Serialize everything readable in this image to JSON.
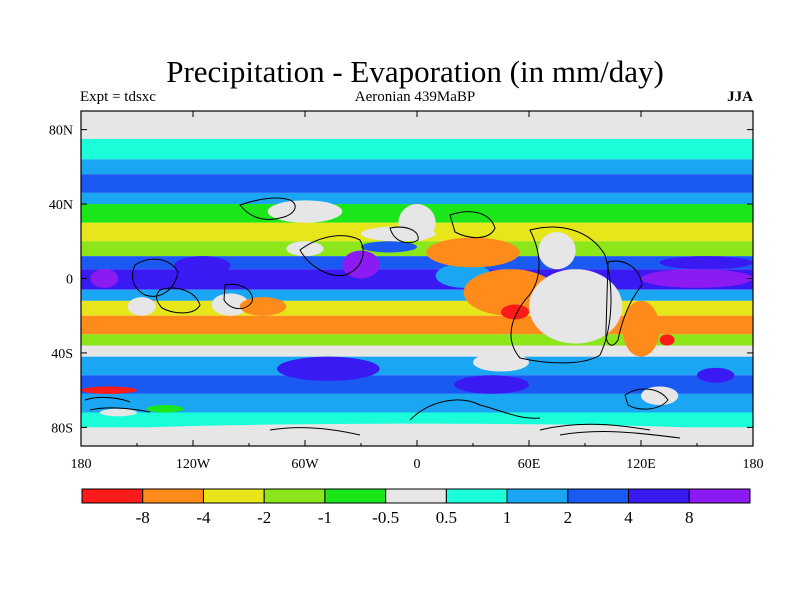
{
  "header": {
    "title": "Precipitation - Evaporation (in mm/day)",
    "left_label": "Expt = tdsxc",
    "center_label": "Aeronian 439MaBP",
    "right_label": "JJA"
  },
  "chart_data": {
    "type": "heatmap",
    "title": "Precipitation - Evaporation (in mm/day)",
    "xlabel": "",
    "ylabel": "",
    "xlim": [
      -180,
      180
    ],
    "ylim": [
      -90,
      90
    ],
    "x_ticks": [
      {
        "value": -180,
        "label": "180"
      },
      {
        "value": -120,
        "label": "120W"
      },
      {
        "value": -60,
        "label": "60W"
      },
      {
        "value": 0,
        "label": "0"
      },
      {
        "value": 60,
        "label": "60E"
      },
      {
        "value": 120,
        "label": "120E"
      },
      {
        "value": 180,
        "label": "180"
      }
    ],
    "y_ticks": [
      {
        "value": 80,
        "label": "80N"
      },
      {
        "value": 40,
        "label": "40N"
      },
      {
        "value": 0,
        "label": "0"
      },
      {
        "value": -40,
        "label": "40S"
      },
      {
        "value": -80,
        "label": "80S"
      }
    ],
    "colorbar": {
      "colors": [
        "#ff1a1a",
        "#ff8c1a",
        "#e6e61a",
        "#8ce61a",
        "#1ae61a",
        "#e6e6e6",
        "#1affd9",
        "#1aa6f2",
        "#1a59f2",
        "#3a1af2",
        "#8c1af2"
      ],
      "labels": [
        "-8",
        "-4",
        "-2",
        "-1",
        "-0.5",
        "0.5",
        "1",
        "2",
        "4",
        "8"
      ]
    },
    "zonal_bands": [
      {
        "lat_from": 90,
        "lat_to": 75,
        "value": 0
      },
      {
        "lat_from": 75,
        "lat_to": 64,
        "value": 0.8
      },
      {
        "lat_from": 64,
        "lat_to": 56,
        "value": 1.5
      },
      {
        "lat_from": 56,
        "lat_to": 46,
        "value": 3
      },
      {
        "lat_from": 46,
        "lat_to": 40,
        "value": 1
      },
      {
        "lat_from": 40,
        "lat_to": 30,
        "value": -0.7
      },
      {
        "lat_from": 30,
        "lat_to": 20,
        "value": -2.5
      },
      {
        "lat_from": 20,
        "lat_to": 12,
        "value": -1.5
      },
      {
        "lat_from": 12,
        "lat_to": 5,
        "value": 3
      },
      {
        "lat_from": 5,
        "lat_to": -6,
        "value": 7
      },
      {
        "lat_from": -6,
        "lat_to": -12,
        "value": 1.5
      },
      {
        "lat_from": -12,
        "lat_to": -20,
        "value": -3
      },
      {
        "lat_from": -20,
        "lat_to": -30,
        "value": -5
      },
      {
        "lat_from": -30,
        "lat_to": -36,
        "value": -1.5
      },
      {
        "lat_from": -36,
        "lat_to": -42,
        "value": 0
      },
      {
        "lat_from": -42,
        "lat_to": -52,
        "value": 1.5
      },
      {
        "lat_from": -52,
        "lat_to": -62,
        "value": 3
      },
      {
        "lat_from": -62,
        "lat_to": -72,
        "value": 1.5
      },
      {
        "lat_from": -72,
        "lat_to": -80,
        "value": 0.8
      },
      {
        "lat_from": -80,
        "lat_to": -90,
        "value": 0
      }
    ],
    "regions": [
      {
        "lon": [
          -130,
          -100
        ],
        "lat": [
          2,
          12
        ],
        "value": 5
      },
      {
        "lon": [
          -175,
          -160
        ],
        "lat": [
          -5,
          5
        ],
        "value": 9
      },
      {
        "lon": [
          -155,
          -140
        ],
        "lat": [
          -20,
          -10
        ],
        "value": 0
      },
      {
        "lon": [
          -110,
          -90
        ],
        "lat": [
          -20,
          -8
        ],
        "value": 0
      },
      {
        "lon": [
          -95,
          -70
        ],
        "lat": [
          -20,
          -10
        ],
        "value": -5
      },
      {
        "lon": [
          -40,
          -20
        ],
        "lat": [
          0,
          15
        ],
        "value": 9
      },
      {
        "lon": [
          -70,
          -50
        ],
        "lat": [
          12,
          20
        ],
        "value": 0
      },
      {
        "lon": [
          -30,
          10
        ],
        "lat": [
          20,
          28
        ],
        "value": 0
      },
      {
        "lon": [
          -30,
          0
        ],
        "lat": [
          14,
          20
        ],
        "value": 3
      },
      {
        "lon": [
          10,
          40
        ],
        "lat": [
          -5,
          8
        ],
        "value": 1
      },
      {
        "lon": [
          5,
          55
        ],
        "lat": [
          6,
          22
        ],
        "value": -5
      },
      {
        "lon": [
          25,
          75
        ],
        "lat": [
          -20,
          5
        ],
        "value": -5
      },
      {
        "lon": [
          45,
          60
        ],
        "lat": [
          -22,
          -14
        ],
        "value": -10
      },
      {
        "lon": [
          60,
          110
        ],
        "lat": [
          -35,
          5
        ],
        "value": 0
      },
      {
        "lon": [
          65,
          85
        ],
        "lat": [
          5,
          25
        ],
        "value": 0
      },
      {
        "lon": [
          110,
          130
        ],
        "lat": [
          -42,
          -12
        ],
        "value": -5
      },
      {
        "lon": [
          130,
          138
        ],
        "lat": [
          -36,
          -30
        ],
        "value": -10
      },
      {
        "lon": [
          120,
          180
        ],
        "lat": [
          -5,
          5
        ],
        "value": 9
      },
      {
        "lon": [
          130,
          180
        ],
        "lat": [
          5,
          12
        ],
        "value": 5
      },
      {
        "lon": [
          -80,
          -40
        ],
        "lat": [
          30,
          42
        ],
        "value": 0
      },
      {
        "lon": [
          -10,
          10
        ],
        "lat": [
          20,
          40
        ],
        "value": 0
      },
      {
        "lon": [
          -180,
          -150
        ],
        "lat": [
          -62,
          -58
        ],
        "value": -10
      },
      {
        "lon": [
          -145,
          -125
        ],
        "lat": [
          -72,
          -68
        ],
        "value": -0.7
      },
      {
        "lon": [
          -170,
          -150
        ],
        "lat": [
          -74,
          -70
        ],
        "value": 0
      },
      {
        "lon": [
          -75,
          -20
        ],
        "lat": [
          -55,
          -42
        ],
        "value": 5
      },
      {
        "lon": [
          30,
          60
        ],
        "lat": [
          -50,
          -40
        ],
        "value": 0
      },
      {
        "lon": [
          20,
          60
        ],
        "lat": [
          -62,
          -52
        ],
        "value": 5
      },
      {
        "lon": [
          120,
          140
        ],
        "lat": [
          -68,
          -58
        ],
        "value": 0
      },
      {
        "lon": [
          150,
          170
        ],
        "lat": [
          -56,
          -48
        ],
        "value": 7
      },
      {
        "lon": [
          -180,
          180
        ],
        "lat": [
          -88,
          -78
        ],
        "value": 0
      }
    ]
  }
}
